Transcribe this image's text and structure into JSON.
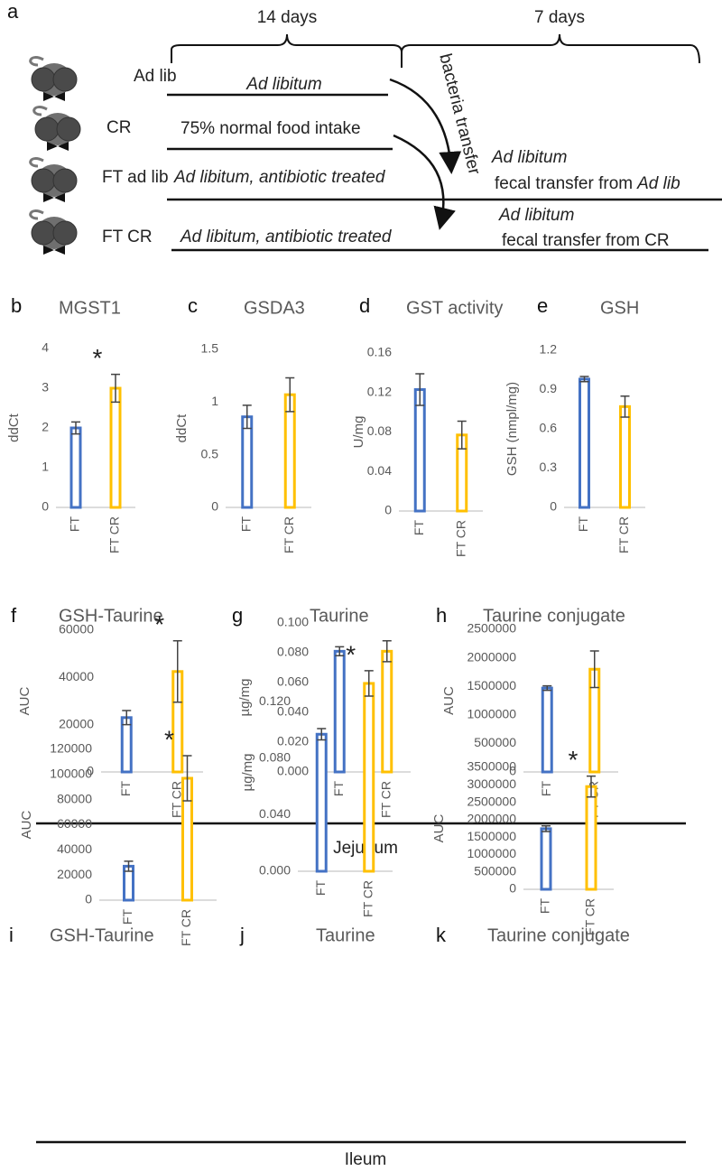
{
  "diagram": {
    "label": "a",
    "periods": [
      "14 days",
      "7 days"
    ],
    "groups": [
      "Ad lib",
      "CR",
      "FT ad lib",
      "FT CR"
    ],
    "treatments": [
      "Ad libitum",
      "75% normal food intake",
      "Ad libitum, antibiotic treated",
      "Ad libitum, antibiotic treated"
    ],
    "transfer_label": "bacteria transfer",
    "transfers": [
      {
        "diet": "Ad libitum",
        "text": "fecal transfer from",
        "source": "Ad lib"
      },
      {
        "diet": "Ad libitum",
        "text": "fecal transfer from",
        "source": "CR"
      }
    ]
  },
  "regions": [
    {
      "label": "Jejunum"
    },
    {
      "label": "Ileum"
    }
  ],
  "chart_data": [
    {
      "type": "bar",
      "letter": "b",
      "title": "MGST1",
      "ylabel": "ddCt",
      "categories": [
        "FT",
        "FT CR"
      ],
      "values": [
        2.0,
        3.0
      ],
      "errors": [
        0.15,
        0.35
      ],
      "colors": [
        "#4472c4",
        "#ffc000"
      ],
      "annotations": [
        null,
        "*"
      ],
      "ylim": [
        0,
        4
      ],
      "yticks": [
        0,
        1,
        2,
        3,
        4
      ]
    },
    {
      "type": "bar",
      "letter": "c",
      "title": "GSDA3",
      "ylabel": "ddCt",
      "categories": [
        "FT",
        "FT CR"
      ],
      "values": [
        0.86,
        1.07
      ],
      "errors": [
        0.11,
        0.16
      ],
      "colors": [
        "#4472c4",
        "#ffc000"
      ],
      "annotations": [
        null,
        null
      ],
      "ylim": [
        0,
        1.5
      ],
      "yticks": [
        0,
        0.5,
        1,
        1.5
      ]
    },
    {
      "type": "bar",
      "letter": "d",
      "title": "GST activity",
      "ylabel": "U/mg",
      "categories": [
        "FT",
        "FT CR"
      ],
      "values": [
        0.123,
        0.077
      ],
      "errors": [
        0.016,
        0.014
      ],
      "colors": [
        "#4472c4",
        "#ffc000"
      ],
      "annotations": [
        null,
        null
      ],
      "ylim": [
        0,
        0.16
      ],
      "yticks": [
        0,
        0.04,
        0.08,
        0.12,
        0.16
      ]
    },
    {
      "type": "bar",
      "letter": "e",
      "title": "GSH",
      "ylabel": "GSH (nmpl/mg)",
      "categories": [
        "FT",
        "FT CR"
      ],
      "values": [
        0.98,
        0.77
      ],
      "errors": [
        0.02,
        0.08
      ],
      "colors": [
        "#4472c4",
        "#ffc000"
      ],
      "annotations": [
        null,
        null
      ],
      "ylim": [
        0,
        1.2
      ],
      "yticks": [
        0,
        0.3,
        0.6,
        0.9,
        1.2
      ]
    },
    {
      "type": "bar",
      "letter": "f",
      "title": "GSH-Taurine",
      "ylabel": "AUC",
      "categories": [
        "FT",
        "FT CR"
      ],
      "values": [
        23000,
        42500
      ],
      "errors": [
        3000,
        13000
      ],
      "colors": [
        "#4472c4",
        "#ffc000"
      ],
      "annotations": [
        null,
        "*"
      ],
      "ylim": [
        0,
        60000
      ],
      "yticks": [
        0,
        20000,
        40000,
        60000
      ]
    },
    {
      "type": "bar",
      "letter": "g",
      "title": "Taurine",
      "ylabel": "µg/mg",
      "categories": [
        "FT",
        "FT CR"
      ],
      "values": [
        0.081,
        0.081
      ],
      "errors": [
        0.003,
        0.007
      ],
      "colors": [
        "#4472c4",
        "#ffc000"
      ],
      "annotations": [
        null,
        null
      ],
      "ylim": [
        0,
        0.1
      ],
      "yticks": [
        {
          "value": 0,
          "label": "0.000"
        },
        {
          "value": 0.02,
          "label": "0.020"
        },
        {
          "value": 0.04,
          "label": "0.040"
        },
        {
          "value": 0.06,
          "label": "0.060"
        },
        {
          "value": 0.08,
          "label": "0.080"
        },
        {
          "value": 0.1,
          "label": "0.100"
        }
      ]
    },
    {
      "type": "bar",
      "letter": "h",
      "title": "Taurine conjugate",
      "ylabel": "AUC",
      "categories": [
        "FT",
        "FT CR"
      ],
      "values": [
        1470000,
        1800000
      ],
      "errors": [
        40000,
        320000
      ],
      "colors": [
        "#4472c4",
        "#ffc000"
      ],
      "annotations": [
        null,
        null
      ],
      "ylim": [
        0,
        2500000
      ],
      "yticks": [
        0,
        500000,
        1000000,
        1500000,
        2000000,
        2500000
      ]
    },
    {
      "type": "bar",
      "letter": "i",
      "title": "GSH-Taurine",
      "ylabel": "AUC",
      "categories": [
        "FT",
        "FT CR"
      ],
      "values": [
        27000,
        97000
      ],
      "errors": [
        4000,
        18000
      ],
      "colors": [
        "#4472c4",
        "#ffc000"
      ],
      "annotations": [
        null,
        "*"
      ],
      "ylim": [
        0,
        120000
      ],
      "yticks": [
        0,
        20000,
        40000,
        60000,
        80000,
        100000,
        120000
      ]
    },
    {
      "type": "bar",
      "letter": "j",
      "title": "Taurine",
      "ylabel": "µg/mg",
      "categories": [
        "FT",
        "FT CR"
      ],
      "values": [
        0.097,
        0.133
      ],
      "errors": [
        0.004,
        0.009
      ],
      "colors": [
        "#4472c4",
        "#ffc000"
      ],
      "annotations": [
        null,
        "*"
      ],
      "ylim": [
        0,
        0.14
      ],
      "yticks": [
        {
          "value": 0,
          "label": "0.000"
        },
        {
          "value": 0.04,
          "label": "0.040"
        },
        {
          "value": 0.08,
          "label": "0.080"
        },
        {
          "value": 0.12,
          "label": "0.120"
        }
      ]
    },
    {
      "type": "bar",
      "letter": "k",
      "title": "Taurine conjugate",
      "ylabel": "AUC",
      "categories": [
        "FT",
        "FT CR"
      ],
      "values": [
        1740000,
        2950000
      ],
      "errors": [
        80000,
        300000
      ],
      "colors": [
        "#4472c4",
        "#ffc000"
      ],
      "annotations": [
        null,
        "*"
      ],
      "ylim": [
        0,
        3500000
      ],
      "yticks": [
        0,
        500000,
        1000000,
        1500000,
        2000000,
        2500000,
        3000000,
        3500000
      ]
    }
  ]
}
